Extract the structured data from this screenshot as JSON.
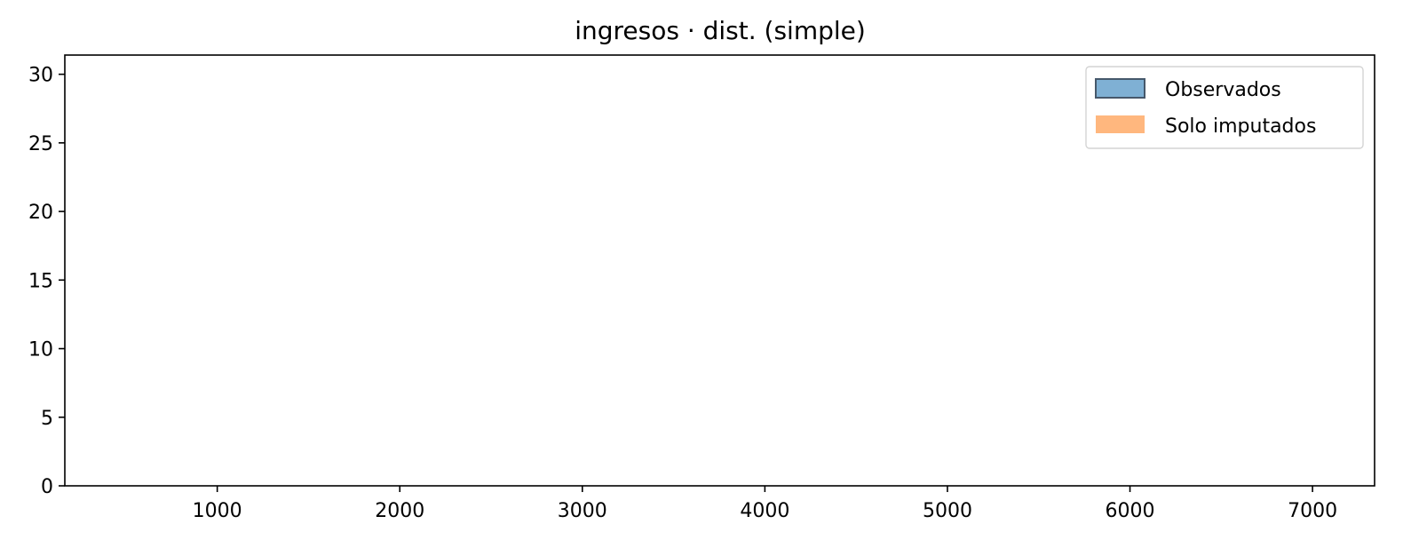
{
  "chart_data": {
    "type": "bar",
    "title": "ingresos · dist. (simple)",
    "xlabel": "",
    "ylabel": "",
    "xlim": [
      165,
      7340
    ],
    "ylim": [
      0,
      31.4
    ],
    "xticks": [
      1000,
      2000,
      3000,
      4000,
      5000,
      6000,
      7000
    ],
    "yticks": [
      0,
      5,
      10,
      15,
      20,
      25,
      30
    ],
    "grid": false,
    "legend_position": "top-right",
    "series": [
      {
        "name": "Observados",
        "color": "#7fb0d4",
        "edge_color": "#46586b",
        "values": []
      },
      {
        "name": "Solo imputados",
        "color": "#ffb77e",
        "values": []
      }
    ]
  }
}
